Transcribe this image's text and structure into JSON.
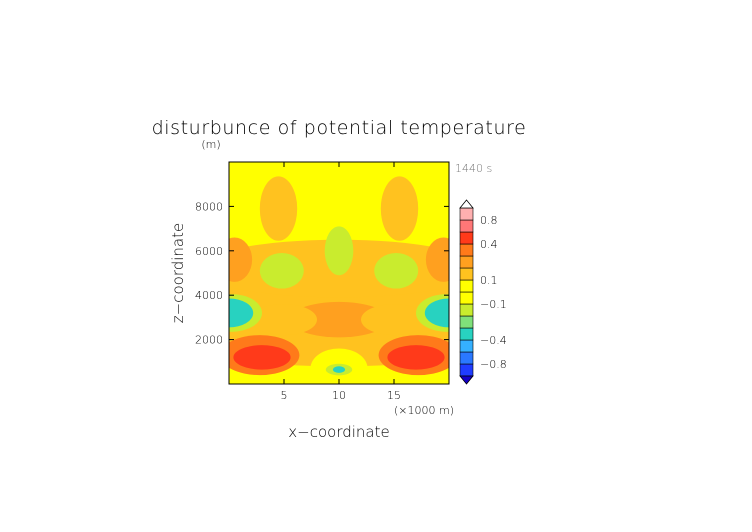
{
  "chart_data": {
    "type": "heatmap",
    "title": "disturbunce of potential temperature",
    "units": "(m)",
    "time_label": "1440 s",
    "xlabel": "x−coordinate",
    "ylabel": "z−coordinate",
    "x_unit_label": "(×1000 m)",
    "x_range": [
      0,
      20
    ],
    "y_range": [
      0,
      10000
    ],
    "x_ticks": [
      5,
      10,
      15
    ],
    "x_tick_labels": [
      "5",
      "10",
      "15"
    ],
    "y_ticks": [
      2000,
      4000,
      6000,
      8000
    ],
    "y_tick_labels": [
      "2000",
      "4000",
      "6000",
      "8000"
    ],
    "colorbar": {
      "levels": [
        -1.0,
        -0.8,
        -0.6,
        -0.4,
        -0.3,
        -0.2,
        -0.1,
        0,
        0.1,
        0.2,
        0.3,
        0.4,
        0.6,
        0.8,
        1.0
      ],
      "colors": [
        "#1f3cff",
        "#2a78ff",
        "#35b0ff",
        "#28d2c0",
        "#7fe07a",
        "#c9ec2e",
        "#ffff00",
        "#ffff00",
        "#ffc21f",
        "#ffa01f",
        "#ff7a1a",
        "#ff3a1a",
        "#ff7777",
        "#ffb0b0"
      ],
      "labels": [
        "0.8",
        "0.4",
        "0.1",
        "−0.1",
        "−0.4",
        "−0.8"
      ],
      "label_values": [
        0.8,
        0.4,
        0.1,
        -0.1,
        -0.4,
        -0.8
      ],
      "extend": "both"
    },
    "features": [
      {
        "x": 10,
        "z": 500,
        "value": -0.35
      },
      {
        "x": 2.5,
        "z": 1300,
        "value": 0.35
      },
      {
        "x": 17.5,
        "z": 1300,
        "value": 0.35
      },
      {
        "x": 1,
        "z": 3200,
        "value": -0.4
      },
      {
        "x": 19,
        "z": 3200,
        "value": -0.4
      },
      {
        "x": 10,
        "z": 3000,
        "value": 0.2
      },
      {
        "x": 4.5,
        "z": 5000,
        "value": -0.15
      },
      {
        "x": 15.5,
        "z": 5000,
        "value": -0.15
      },
      {
        "x": 10,
        "z": 6000,
        "value": -0.15
      },
      {
        "x": 4.5,
        "z": 7800,
        "value": 0.15
      },
      {
        "x": 15.5,
        "z": 7800,
        "value": 0.15
      }
    ]
  }
}
